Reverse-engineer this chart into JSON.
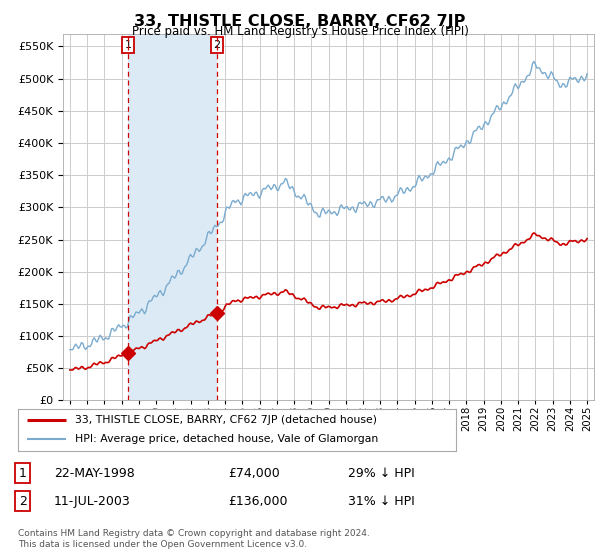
{
  "title": "33, THISTLE CLOSE, BARRY, CF62 7JP",
  "subtitle": "Price paid vs. HM Land Registry's House Price Index (HPI)",
  "yticks": [
    0,
    50000,
    100000,
    150000,
    200000,
    250000,
    300000,
    350000,
    400000,
    450000,
    500000,
    550000
  ],
  "xlim_start": 1994.6,
  "xlim_end": 2025.4,
  "ylim_max": 570000,
  "sale1_date": "22-MAY-1998",
  "sale1_price": 74000,
  "sale1_label": "29% ↓ HPI",
  "sale1_x": 1998.38,
  "sale2_date": "11-JUL-2003",
  "sale2_price": 136000,
  "sale2_label": "31% ↓ HPI",
  "sale2_x": 2003.53,
  "legend_line1": "33, THISTLE CLOSE, BARRY, CF62 7JP (detached house)",
  "legend_line2": "HPI: Average price, detached house, Vale of Glamorgan",
  "footnote": "Contains HM Land Registry data © Crown copyright and database right 2024.\nThis data is licensed under the Open Government Licence v3.0.",
  "line_red_color": "#cc0000",
  "line_blue_color": "#7aabcf",
  "shade_color": "#dceaf5",
  "grid_color": "#cccccc",
  "bg_color": "#ffffff",
  "vline_color": "#cc0000"
}
